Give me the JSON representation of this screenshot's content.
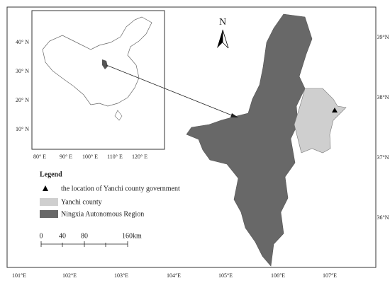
{
  "map": {
    "north_label": "N",
    "lon_labels": [
      "101°E",
      "102°E",
      "103°E",
      "104°E",
      "105°E",
      "106°E",
      "107°E"
    ],
    "lat_labels": [
      "39°N",
      "38°N",
      "37°N",
      "36°N"
    ],
    "inset": {
      "lat_labels": [
        "40° N",
        "30° N",
        "20° N",
        "10° N"
      ],
      "lon_labels": [
        "80° E",
        "90° E",
        "100° E",
        "110° E",
        "120° E"
      ]
    },
    "legend": {
      "title": "Legend",
      "items": [
        "the location of Yanchi county government",
        "Yanchi county",
        "Ningxia Autonomous Region"
      ]
    },
    "scale_bar": {
      "labels": [
        "0",
        "40",
        "80",
        "160km"
      ]
    }
  }
}
